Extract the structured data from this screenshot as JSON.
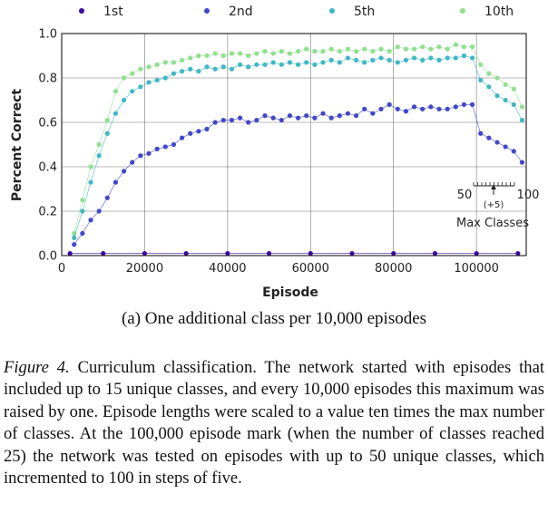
{
  "chart_data": {
    "type": "scatter",
    "xlabel": "Episode",
    "ylabel": "Percent Correct",
    "xlim": [
      0,
      112000
    ],
    "ylim": [
      0,
      1.0
    ],
    "xticks": [
      0,
      20000,
      40000,
      60000,
      80000,
      100000
    ],
    "yticks": [
      0.0,
      0.2,
      0.4,
      0.6,
      0.8,
      1.0
    ],
    "x_tick_labels": [
      "0",
      "20000",
      "40000",
      "60000",
      "80000",
      "100000"
    ],
    "y_tick_labels": [
      "0.0",
      "0.2",
      "0.4",
      "0.6",
      "0.8",
      "1.0"
    ],
    "grid": true,
    "legend_position": "top",
    "series": [
      {
        "name": "1st",
        "color": "#3b0aa0",
        "x": [
          2000,
          10000,
          20000,
          30000,
          40000,
          50000,
          60000,
          70000,
          80000,
          90000,
          100000,
          110000
        ],
        "y": [
          0.01,
          0.01,
          0.01,
          0.01,
          0.01,
          0.01,
          0.01,
          0.01,
          0.01,
          0.01,
          0.01,
          0.01
        ]
      },
      {
        "name": "2nd",
        "color": "#4147c8",
        "x": [
          3000,
          5000,
          7000,
          9000,
          11000,
          13000,
          15000,
          17000,
          19000,
          21000,
          23000,
          25000,
          27000,
          29000,
          31000,
          33000,
          35000,
          37000,
          39000,
          41000,
          43000,
          45000,
          47000,
          49000,
          51000,
          53000,
          55000,
          57000,
          59000,
          61000,
          63000,
          65000,
          67000,
          69000,
          71000,
          73000,
          75000,
          77000,
          79000,
          81000,
          83000,
          85000,
          87000,
          89000,
          91000,
          93000,
          95000,
          97000,
          99000,
          101000,
          103000,
          105000,
          107000,
          109000,
          111000
        ],
        "y": [
          0.05,
          0.1,
          0.16,
          0.2,
          0.26,
          0.33,
          0.38,
          0.42,
          0.45,
          0.46,
          0.48,
          0.49,
          0.5,
          0.53,
          0.55,
          0.56,
          0.57,
          0.6,
          0.61,
          0.61,
          0.62,
          0.6,
          0.61,
          0.63,
          0.62,
          0.61,
          0.63,
          0.62,
          0.63,
          0.62,
          0.64,
          0.62,
          0.63,
          0.64,
          0.63,
          0.66,
          0.64,
          0.66,
          0.68,
          0.66,
          0.65,
          0.67,
          0.66,
          0.67,
          0.66,
          0.66,
          0.67,
          0.68,
          0.68,
          0.55,
          0.53,
          0.51,
          0.49,
          0.47,
          0.42
        ]
      },
      {
        "name": "5th",
        "color": "#3fb8c4",
        "x": [
          3000,
          5000,
          7000,
          9000,
          11000,
          13000,
          15000,
          17000,
          19000,
          21000,
          23000,
          25000,
          27000,
          29000,
          31000,
          33000,
          35000,
          37000,
          39000,
          41000,
          43000,
          45000,
          47000,
          49000,
          51000,
          53000,
          55000,
          57000,
          59000,
          61000,
          63000,
          65000,
          67000,
          69000,
          71000,
          73000,
          75000,
          77000,
          79000,
          81000,
          83000,
          85000,
          87000,
          89000,
          91000,
          93000,
          95000,
          97000,
          99000,
          101000,
          103000,
          105000,
          107000,
          109000,
          111000
        ],
        "y": [
          0.08,
          0.2,
          0.33,
          0.45,
          0.55,
          0.64,
          0.7,
          0.74,
          0.76,
          0.78,
          0.79,
          0.8,
          0.82,
          0.83,
          0.84,
          0.83,
          0.85,
          0.84,
          0.85,
          0.84,
          0.86,
          0.85,
          0.86,
          0.86,
          0.87,
          0.86,
          0.87,
          0.86,
          0.87,
          0.86,
          0.87,
          0.88,
          0.87,
          0.89,
          0.88,
          0.87,
          0.88,
          0.89,
          0.88,
          0.87,
          0.88,
          0.89,
          0.88,
          0.89,
          0.88,
          0.89,
          0.89,
          0.9,
          0.89,
          0.79,
          0.76,
          0.72,
          0.7,
          0.68,
          0.61
        ]
      },
      {
        "name": "10th",
        "color": "#90e090",
        "x": [
          3000,
          5000,
          7000,
          9000,
          11000,
          13000,
          15000,
          17000,
          19000,
          21000,
          23000,
          25000,
          27000,
          29000,
          31000,
          33000,
          35000,
          37000,
          39000,
          41000,
          43000,
          45000,
          47000,
          49000,
          51000,
          53000,
          55000,
          57000,
          59000,
          61000,
          63000,
          65000,
          67000,
          69000,
          71000,
          73000,
          75000,
          77000,
          79000,
          81000,
          83000,
          85000,
          87000,
          89000,
          91000,
          93000,
          95000,
          97000,
          99000,
          101000,
          103000,
          105000,
          107000,
          109000,
          111000
        ],
        "y": [
          0.1,
          0.25,
          0.4,
          0.5,
          0.61,
          0.74,
          0.8,
          0.82,
          0.84,
          0.85,
          0.86,
          0.87,
          0.87,
          0.88,
          0.89,
          0.9,
          0.9,
          0.91,
          0.9,
          0.91,
          0.91,
          0.9,
          0.91,
          0.92,
          0.91,
          0.92,
          0.91,
          0.92,
          0.93,
          0.92,
          0.92,
          0.93,
          0.92,
          0.93,
          0.92,
          0.93,
          0.92,
          0.93,
          0.92,
          0.94,
          0.93,
          0.93,
          0.94,
          0.93,
          0.94,
          0.93,
          0.95,
          0.94,
          0.94,
          0.86,
          0.82,
          0.8,
          0.77,
          0.75,
          0.67
        ]
      }
    ],
    "inset_annotation": {
      "left_label": "50",
      "right_label": "100",
      "step_label": "(+5)",
      "title": "Max Classes"
    }
  },
  "subcaption": "(a) One additional class per 10,000 episodes",
  "figure_caption": {
    "label": "Figure 4.",
    "text": "Curriculum classification. The network started with episodes that included up to 15 unique classes, and every 10,000 episodes this maximum was raised by one. Episode lengths were scaled to a value ten times the max number of classes. At the 100,000 episode mark (when the number of classes reached 25) the network was tested on episodes with up to 50 unique classes, which incremented to 100 in steps of five."
  }
}
